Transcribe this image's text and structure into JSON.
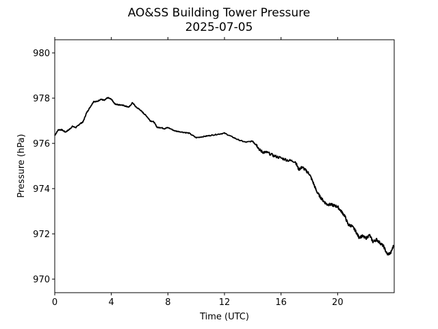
{
  "chart_data": {
    "type": "line",
    "title": "AO&SS Building Tower Pressure",
    "subtitle": "2025-07-05",
    "xlabel": "Time (UTC)",
    "ylabel": "Pressure (hPa)",
    "xlim": [
      0,
      24
    ],
    "ylim": [
      969.4,
      980.58
    ],
    "xticks": [
      0,
      4,
      8,
      12,
      16,
      20
    ],
    "xtick_labels": [
      "0",
      "4",
      "8",
      "12",
      "16",
      "20"
    ],
    "yticks": [
      970,
      972,
      974,
      976,
      978,
      980
    ],
    "ytick_labels": [
      "970",
      "972",
      "974",
      "976",
      "978",
      "980"
    ],
    "grid": false,
    "line_color": "#000000",
    "series": [
      {
        "name": "Pressure",
        "x": [
          0,
          0.25,
          0.5,
          0.75,
          1,
          1.25,
          1.5,
          1.75,
          2,
          2.25,
          2.5,
          2.75,
          3,
          3.25,
          3.5,
          3.75,
          4,
          4.25,
          4.5,
          4.75,
          5,
          5.25,
          5.5,
          5.75,
          6,
          6.25,
          6.5,
          6.75,
          7,
          7.25,
          7.5,
          7.75,
          8,
          8.5,
          9,
          9.5,
          10,
          10.5,
          11,
          11.5,
          12,
          12.5,
          13,
          13.5,
          14,
          14.25,
          14.5,
          14.75,
          15,
          15.5,
          16,
          16.5,
          17,
          17.25,
          17.5,
          17.75,
          18,
          18.25,
          18.5,
          18.75,
          19,
          19.25,
          19.5,
          19.75,
          20,
          20.25,
          20.5,
          20.75,
          21,
          21.25,
          21.5,
          21.75,
          22,
          22.25,
          22.5,
          22.75,
          23,
          23.25,
          23.5,
          23.75,
          23.97
        ],
        "values": [
          976.35,
          976.6,
          976.6,
          976.5,
          976.6,
          976.75,
          976.7,
          976.85,
          976.95,
          977.35,
          977.6,
          977.85,
          977.85,
          977.95,
          977.9,
          978.02,
          977.95,
          977.75,
          977.7,
          977.7,
          977.65,
          977.6,
          977.8,
          977.6,
          977.5,
          977.35,
          977.2,
          977.0,
          976.95,
          976.7,
          976.7,
          976.65,
          976.7,
          976.55,
          976.5,
          976.45,
          976.25,
          976.3,
          976.35,
          976.4,
          976.45,
          976.3,
          976.15,
          976.05,
          976.1,
          975.95,
          975.7,
          975.6,
          975.6,
          975.45,
          975.35,
          975.25,
          975.2,
          974.85,
          974.95,
          974.8,
          974.65,
          974.3,
          973.9,
          973.65,
          973.45,
          973.3,
          973.3,
          973.25,
          973.2,
          973.0,
          972.8,
          972.4,
          972.35,
          972.15,
          971.85,
          971.9,
          971.8,
          971.95,
          971.65,
          971.75,
          971.6,
          971.45,
          971.1,
          971.15,
          971.5
        ]
      }
    ]
  }
}
